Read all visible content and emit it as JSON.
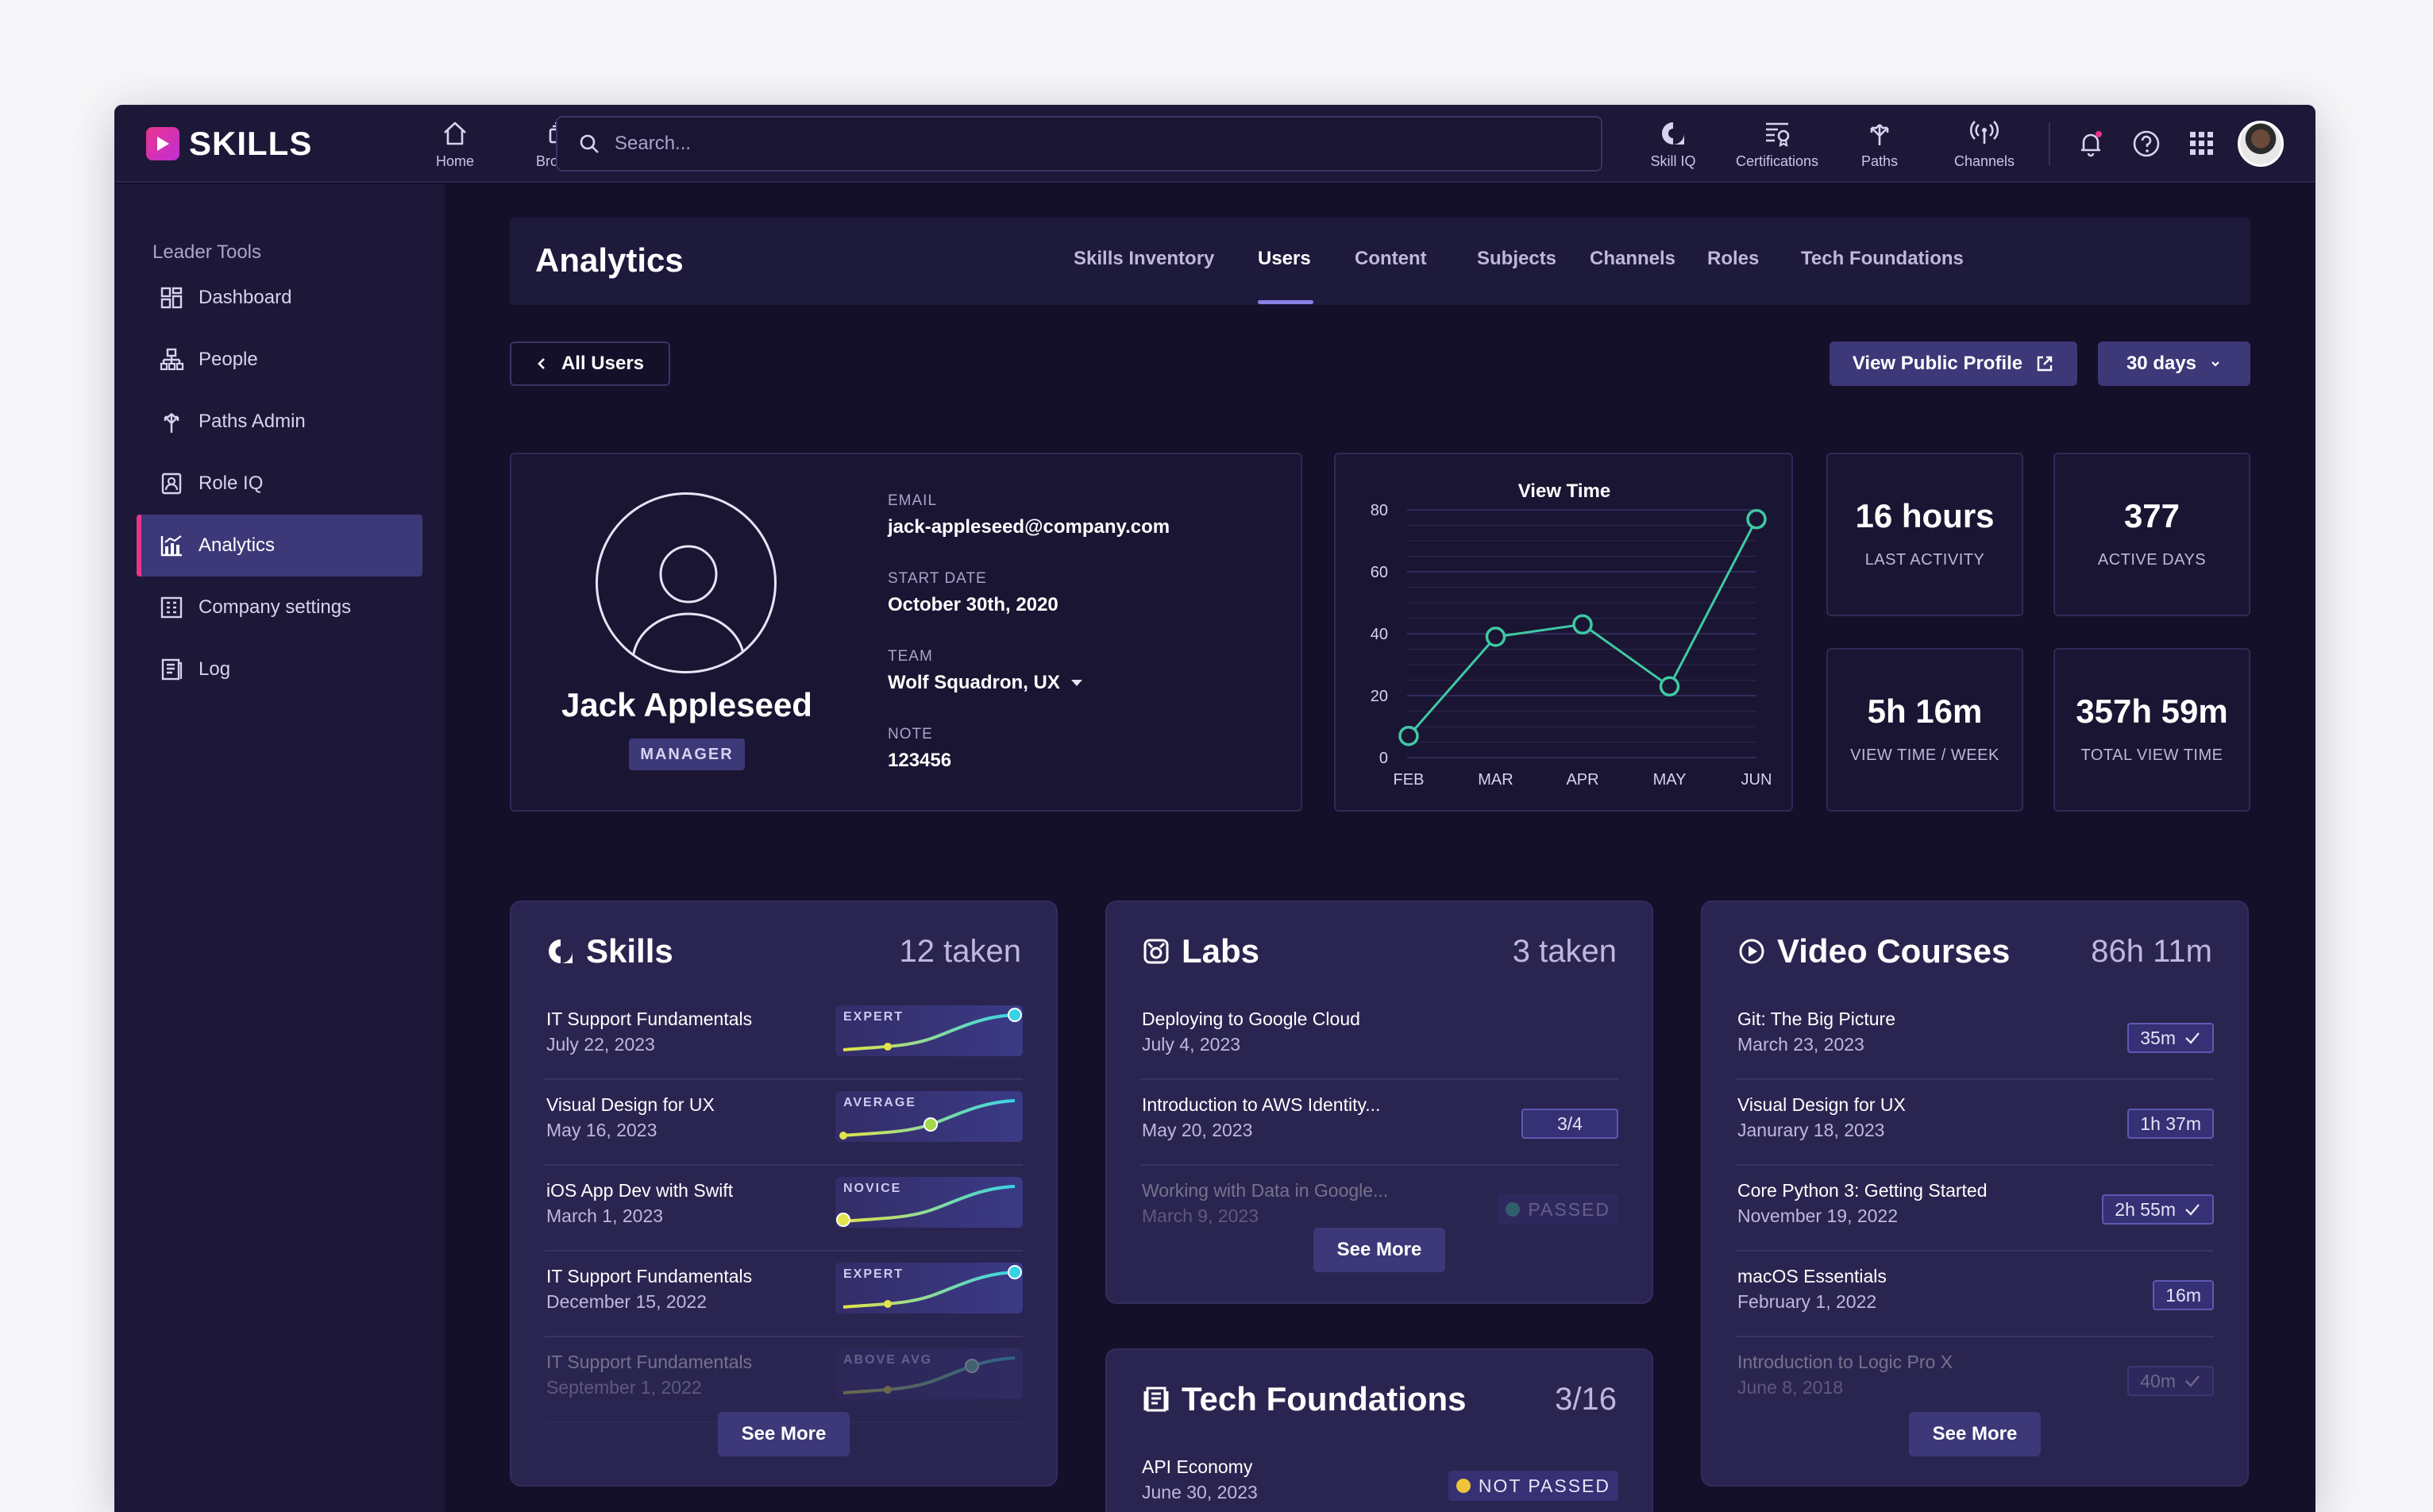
{
  "app": {
    "logo_text": "SKILLS"
  },
  "topnav": {
    "home": "Home",
    "browse": "Browse",
    "search_placeholder": "Search...",
    "skill_iq": "Skill IQ",
    "certifications": "Certifications",
    "paths": "Paths",
    "channels": "Channels"
  },
  "sidebar": {
    "section_title": "Leader Tools",
    "items": [
      {
        "label": "Dashboard"
      },
      {
        "label": "People"
      },
      {
        "label": "Paths Admin"
      },
      {
        "label": "Role IQ"
      },
      {
        "label": "Analytics"
      },
      {
        "label": "Company settings"
      },
      {
        "label": "Log"
      }
    ]
  },
  "header": {
    "title": "Analytics",
    "tabs": [
      {
        "label": "Skills Inventory"
      },
      {
        "label": "Users"
      },
      {
        "label": "Content"
      },
      {
        "label": "Subjects"
      },
      {
        "label": "Channels"
      },
      {
        "label": "Roles"
      },
      {
        "label": "Tech Foundations"
      }
    ]
  },
  "toolbar": {
    "back_label": "All Users",
    "public_profile_label": "View Public Profile",
    "range_label": "30 days"
  },
  "profile": {
    "name": "Jack Appleseed",
    "role_badge": "MANAGER",
    "email_label": "EMAIL",
    "email": "jack-appleseed@company.com",
    "start_label": "START DATE",
    "start_date": "October 30th, 2020",
    "team_label": "TEAM",
    "team": "Wolf Squadron, UX",
    "note_label": "NOTE",
    "note": "123456"
  },
  "chart_data": {
    "type": "line",
    "title": "View Time",
    "categories": [
      "FEB",
      "MAR",
      "APR",
      "MAY",
      "JUN"
    ],
    "values": [
      7,
      39,
      43,
      23,
      77
    ],
    "yticks": [
      0,
      20,
      40,
      60,
      80
    ],
    "ylim": [
      0,
      80
    ]
  },
  "stats": [
    {
      "value": "16 hours",
      "label": "LAST ACTIVITY"
    },
    {
      "value": "377",
      "label": "ACTIVE DAYS"
    },
    {
      "value": "5h 16m",
      "label": "VIEW TIME / WEEK"
    },
    {
      "value": "357h 59m",
      "label": "TOTAL VIEW TIME"
    }
  ],
  "skills": {
    "title": "Skills",
    "count": "12 taken",
    "see_more": "See More",
    "rows": [
      {
        "title": "IT Support Fundamentals",
        "date": "July 22, 2023",
        "level": "EXPERT"
      },
      {
        "title": "Visual Design for UX",
        "date": "May 16, 2023",
        "level": "AVERAGE"
      },
      {
        "title": "iOS App Dev with Swift",
        "date": "March 1, 2023",
        "level": "NOVICE"
      },
      {
        "title": "IT Support Fundamentals",
        "date": "December 15, 2022",
        "level": "EXPERT"
      },
      {
        "title": "IT Support Fundamentals",
        "date": "September 1, 2022",
        "level": "ABOVE AVG"
      }
    ]
  },
  "labs": {
    "title": "Labs",
    "count": "3 taken",
    "see_more": "See More",
    "rows": [
      {
        "title": "Deploying to Google Cloud",
        "date": "July 4, 2023"
      },
      {
        "title": "Introduction to AWS Identity...",
        "date": "May 20, 2023",
        "progress": "3/4"
      },
      {
        "title": "Working with Data in Google...",
        "date": "March 9, 2023",
        "status": "PASSED"
      }
    ]
  },
  "tech": {
    "title": "Tech Foundations",
    "count": "3/16",
    "rows": [
      {
        "title": "API Economy",
        "date": "June 30, 2023",
        "status": "NOT PASSED"
      }
    ]
  },
  "videos": {
    "title": "Video Courses",
    "count": "86h 11m",
    "see_more": "See More",
    "rows": [
      {
        "title": "Git: The Big Picture",
        "date": "March 23, 2023",
        "duration": "35m"
      },
      {
        "title": "Visual Design for UX",
        "date": "Janurary 18, 2023",
        "duration": "1h 37m"
      },
      {
        "title": "Core Python 3: Getting Started",
        "date": "November 19, 2022",
        "duration": "2h 55m"
      },
      {
        "title": "macOS Essentials",
        "date": "February 1, 2022",
        "duration": "16m"
      },
      {
        "title": "Introduction to Logic Pro X",
        "date": "June 8, 2018",
        "duration": "40m"
      }
    ]
  },
  "colors": {
    "accent": "#e8348c",
    "primary": "#3d3878",
    "chart_line": "#3fc9a4",
    "spark_yellow": "#e3e34a",
    "spark_cyan": "#36d3e8",
    "not_passed": "#f0c43a",
    "passed": "#3fc9a4"
  }
}
